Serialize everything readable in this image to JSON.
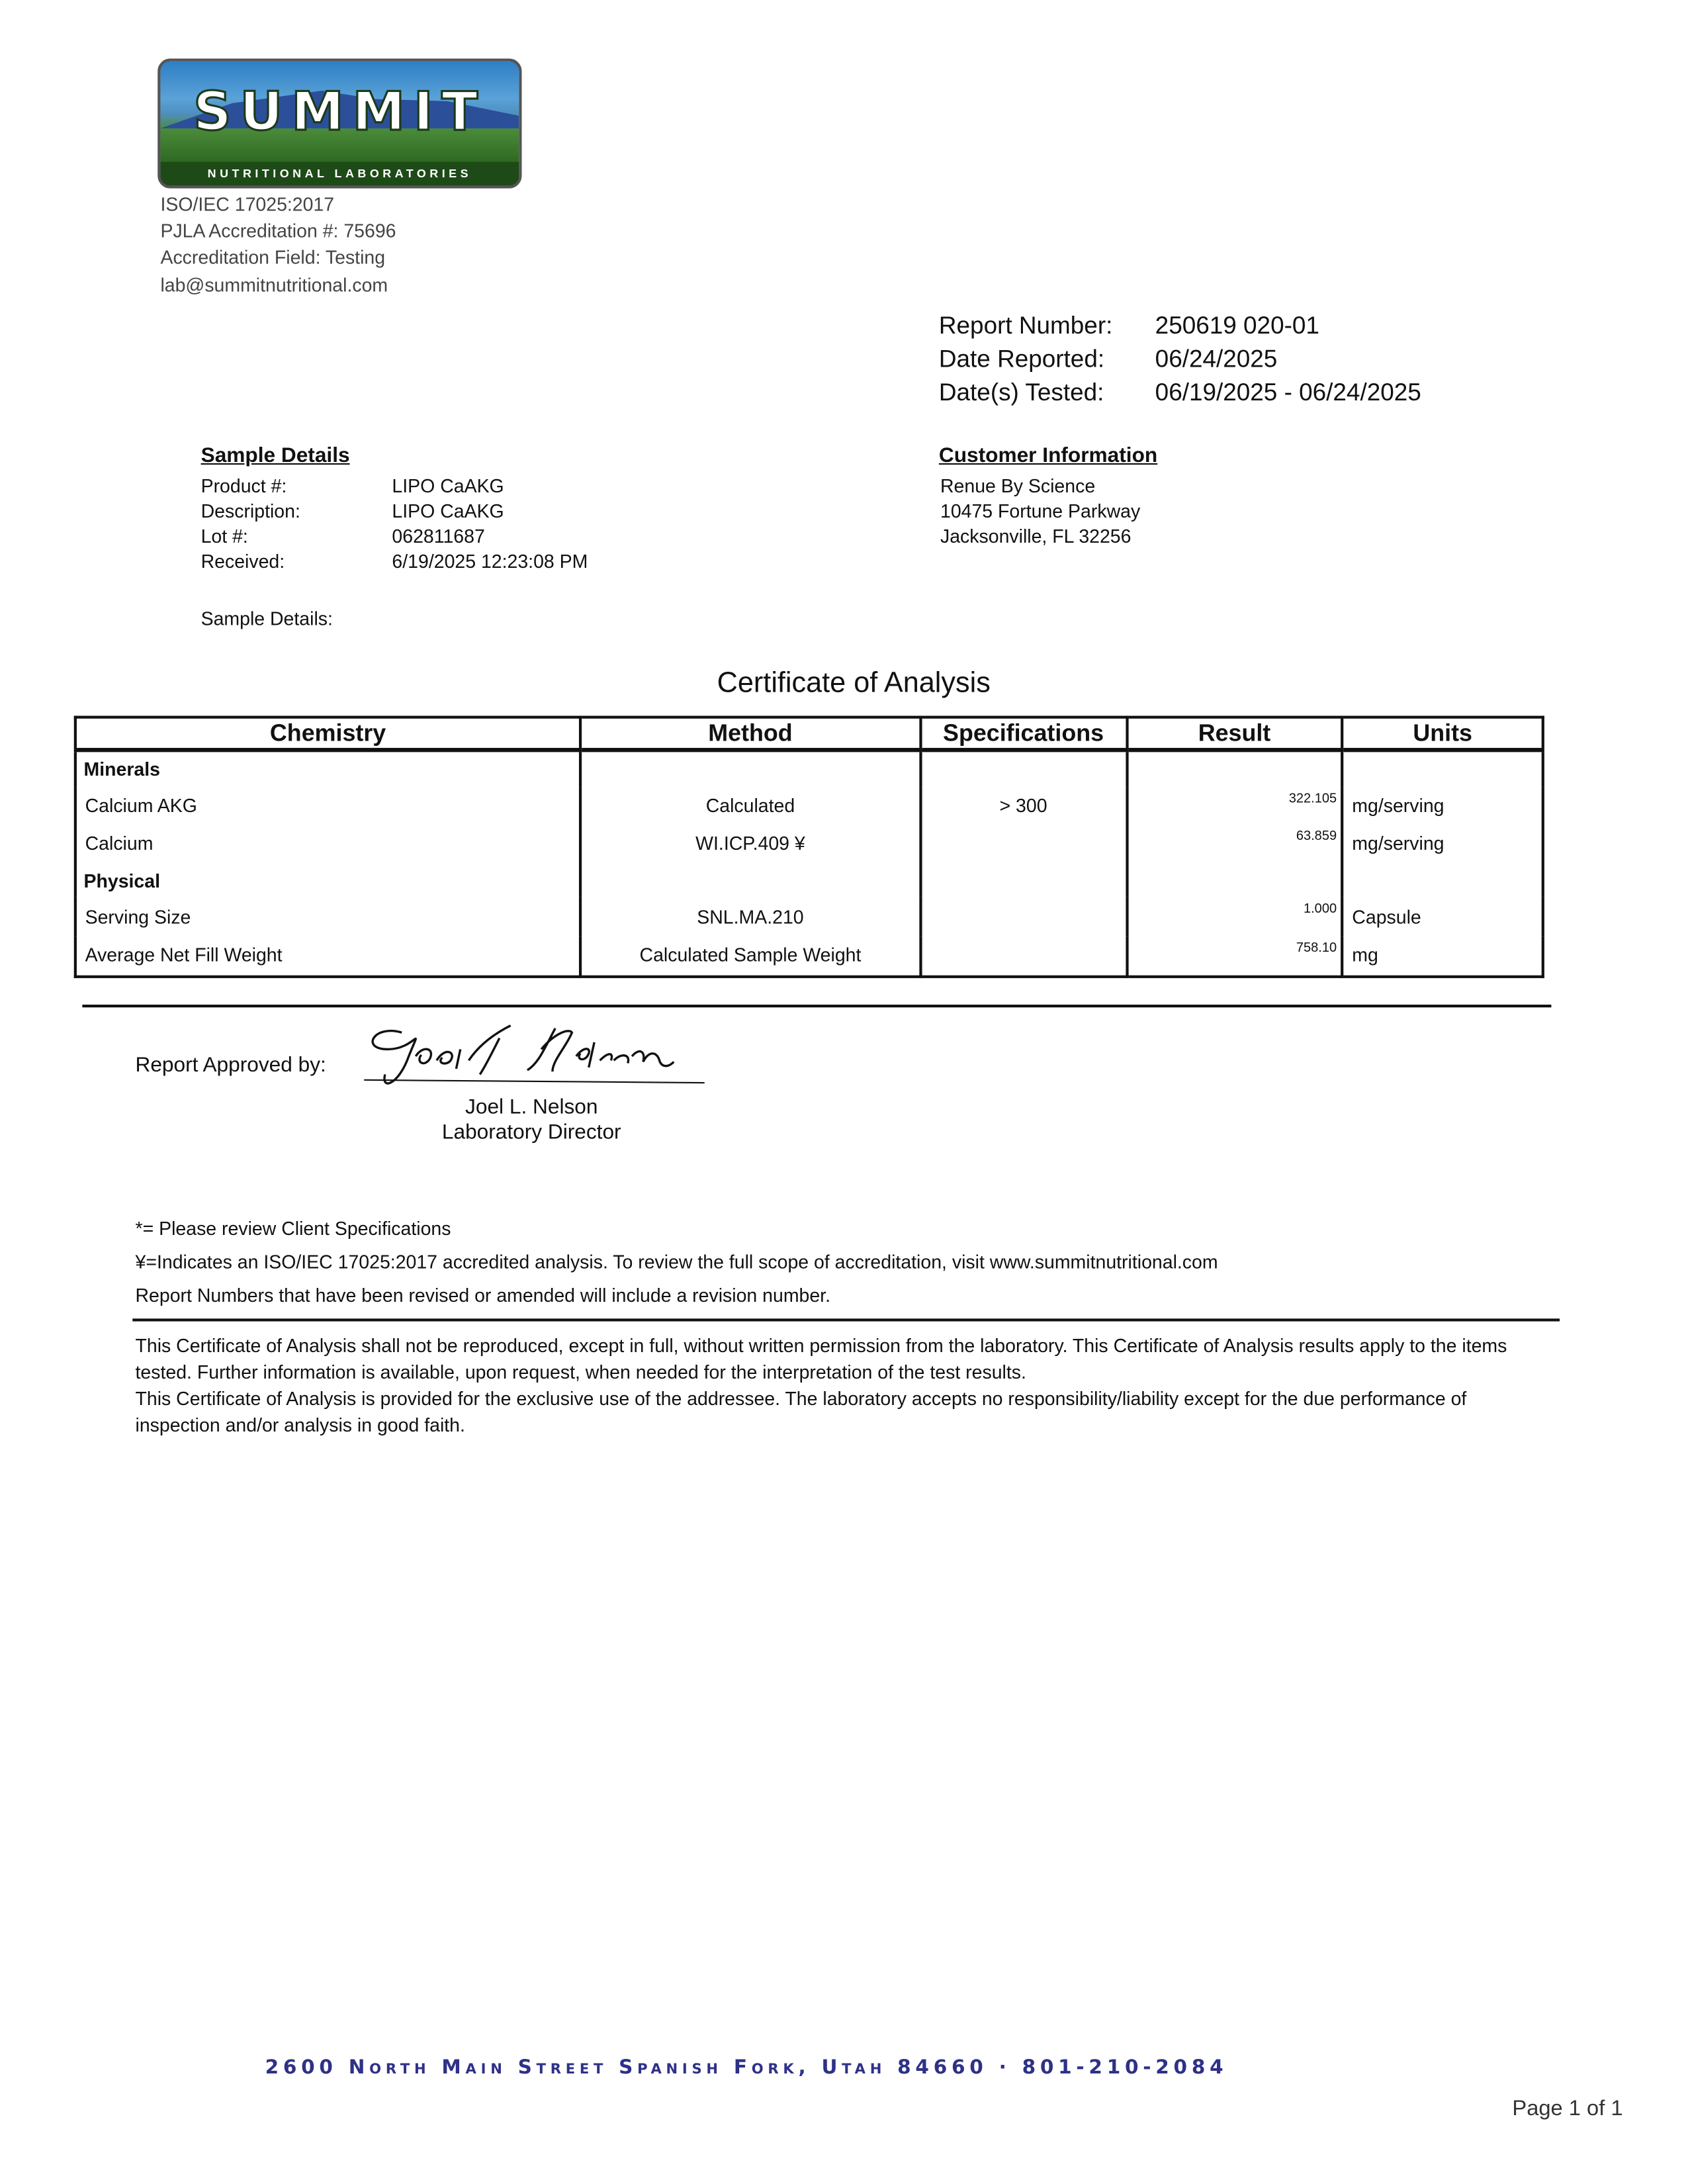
{
  "lab": {
    "logo_text": "SUMMIT",
    "logo_subtext": "NUTRITIONAL LABORATORIES",
    "info": [
      "ISO/IEC 17025:2017",
      "PJLA Accreditation #: 75696",
      "Accreditation Field: Testing",
      "lab@summitnutritional.com"
    ]
  },
  "report": {
    "number_label": "Report Number:",
    "number": "250619 020-01",
    "reported_label": "Date Reported:",
    "reported": "06/24/2025",
    "tested_label": "Date(s) Tested:",
    "tested": "06/19/2025 - 06/24/2025"
  },
  "sample": {
    "heading": "Sample Details",
    "rows": [
      {
        "label": "Product #:",
        "value": "LIPO CaAKG"
      },
      {
        "label": "Description:",
        "value": "LIPO CaAKG"
      },
      {
        "label": "Lot #:",
        "value": "062811687"
      },
      {
        "label": "Received:",
        "value": "6/19/2025 12:23:08 PM"
      }
    ],
    "details_label": "Sample Details:"
  },
  "customer": {
    "heading": "Customer Information",
    "lines": [
      "Renue By Science",
      "10475 Fortune Parkway",
      "Jacksonville, FL 32256"
    ]
  },
  "title": "Certificate of Analysis",
  "table": {
    "headers": [
      "Chemistry",
      "Method",
      "Specifications",
      "Result",
      "Units"
    ],
    "rows": [
      {
        "section": "Minerals"
      },
      {
        "name": "Calcium AKG",
        "method": "Calculated",
        "spec": "> 300",
        "result": "322.105",
        "units": "mg/serving"
      },
      {
        "name": "Calcium",
        "method": "WI.ICP.409  ¥",
        "spec": "",
        "result": "63.859",
        "units": "mg/serving"
      },
      {
        "section": "Physical"
      },
      {
        "name": "Serving Size",
        "method": "SNL.MA.210",
        "spec": "",
        "result": "1.000",
        "units": "Capsule"
      },
      {
        "name": "Average Net Fill Weight",
        "method": "Calculated Sample Weight",
        "spec": "",
        "result": "758.10",
        "units": "mg"
      }
    ]
  },
  "approval": {
    "label": "Report Approved by:",
    "signature": "Joel L Nelson",
    "name": "Joel L. Nelson",
    "title": "Laboratory Director"
  },
  "notes": [
    "*= Please review Client Specifications",
    "¥=Indicates an ISO/IEC 17025:2017 accredited analysis. To review the full scope of accreditation, visit www.summitnutritional.com",
    "Report Numbers that have been revised or amended will include a revision number."
  ],
  "disclaimer": [
    "This Certificate of Analysis shall not be reproduced, except in full, without written permission from the laboratory. This Certificate of Analysis results apply to the items tested. Further information is available, upon request, when needed for the interpretation of the test results.",
    "This Certificate of Analysis is provided for the exclusive use of the addressee. The laboratory accepts no responsibility/liability except for the due performance of inspection and/or analysis in good faith."
  ],
  "footer": {
    "address": "2600 North Main Street  Spanish Fork, Utah  84660 · 801-210-2084",
    "page": "Page 1 of 1"
  }
}
